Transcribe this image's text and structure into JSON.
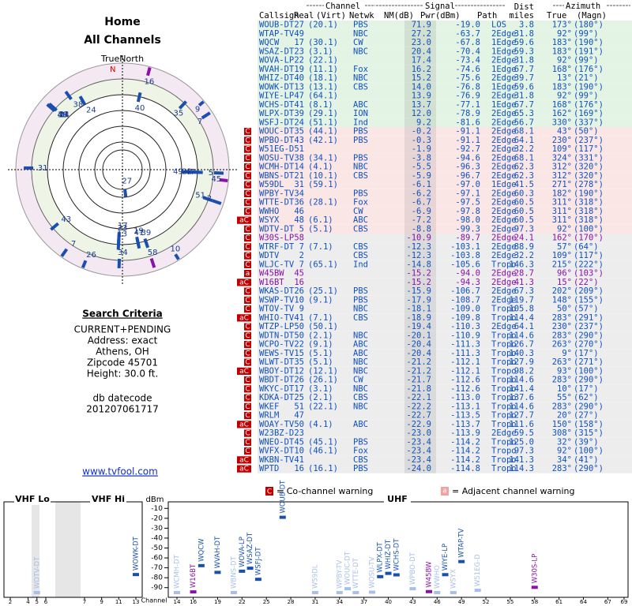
{
  "header": {
    "title": "Home",
    "subtitle": "All Channels"
  },
  "polar": {
    "north_label": "TrueNorth",
    "n": "N"
  },
  "criteria": {
    "heading": "Search Criteria",
    "lines": [
      "CURRENT+PENDING",
      "Address: exact",
      "Athens, OH",
      "Zipcode 45701",
      "Height: 30.0 ft."
    ],
    "datecode_label": "db datecode",
    "datecode": "201207061717",
    "link": "www.tvfool.com"
  },
  "table": {
    "groups": [
      "Channel",
      "Signal",
      "Azimuth"
    ],
    "columns": [
      "Callsign",
      "Real",
      "(Virt)",
      "Netwk",
      "NM(dB)",
      "Pwr(dBm)",
      "Path",
      "Dist",
      "miles",
      "True",
      "(Magn)"
    ],
    "rows": [
      [
        "WOUB-DT",
        "27",
        "(20.1)",
        "PBS",
        "71.9",
        "-19.0",
        "LOS",
        "3.8",
        "173°",
        "(180°)"
      ],
      [
        "WTAP-TV",
        "49",
        null,
        "NBC",
        "27.2",
        "-63.7",
        "2Edge",
        "31.8",
        "92°",
        "(99°)"
      ],
      [
        "WQCW",
        "17",
        "(30.1)",
        "CW",
        "23.0",
        "-67.8",
        "1Edge",
        "59.6",
        "183°",
        "(190°)"
      ],
      [
        "WSAZ-DT",
        "23",
        "(3.1)",
        "NBC",
        "20.4",
        "-70.4",
        "1Edge",
        "59.3",
        "183°",
        "(191°)"
      ],
      [
        "WOVA-LP",
        "22",
        "(22.1)",
        null,
        "17.4",
        "-73.4",
        "2Edge",
        "31.8",
        "92°",
        "(99°)"
      ],
      [
        "WVAH-DT",
        "19",
        "(11.1)",
        "Fox",
        "16.2",
        "-74.6",
        "1Edge",
        "67.7",
        "168°",
        "(176°)"
      ],
      [
        "WHIZ-DT",
        "40",
        "(18.1)",
        "NBC",
        "15.2",
        "-75.6",
        "2Edge",
        "39.7",
        "13°",
        "(21°)"
      ],
      [
        "WOWK-DT",
        "13",
        "(13.1)",
        "CBS",
        "14.0",
        "-76.8",
        "1Edge",
        "59.6",
        "183°",
        "(190°)"
      ],
      [
        "WIYE-LP",
        "47",
        "(64.1)",
        null,
        "13.9",
        "-76.9",
        "2Edge",
        "31.8",
        "92°",
        "(99°)"
      ],
      [
        "WCHS-DT",
        "41",
        "(8.1)",
        "ABC",
        "13.7",
        "-77.1",
        "1Edge",
        "67.7",
        "168°",
        "(176°)"
      ],
      [
        "WLPX-DT",
        "39",
        "(29.1)",
        "ION",
        "12.0",
        "-78.9",
        "2Edge",
        "65.3",
        "162°",
        "(169°)"
      ],
      [
        "WSFJ-DT",
        "24",
        "(51.1)",
        "Ind",
        "9.2",
        "-81.6",
        "2Edge",
        "56.7",
        "330°",
        "(337°)"
      ],
      [
        "WOUC-DT",
        "35",
        "(44.1)",
        "PBS",
        "-0.2",
        "-91.1",
        "2Edge",
        "68.1",
        "43°",
        "(50°)"
      ],
      [
        "WPBO-DT",
        "43",
        "(42.1)",
        "PBS",
        "-0.3",
        "-91.1",
        "2Edge",
        "64.1",
        "230°",
        "(237°)"
      ],
      [
        "W51EG-D",
        "51",
        null,
        null,
        "-1.9",
        "-92.7",
        "2Edge",
        "32.2",
        "109°",
        "(117°)"
      ],
      [
        "WOSU-TV",
        "38",
        "(34.1)",
        "PBS",
        "-3.8",
        "-94.6",
        "2Edge",
        "68.1",
        "324°",
        "(331°)"
      ],
      [
        "WCMH-DT",
        "14",
        "(4.1)",
        "NBC",
        "-5.5",
        "-96.3",
        "2Edge",
        "62.3",
        "312°",
        "(320°)"
      ],
      [
        "WBNS-DT",
        "21",
        "(10.1)",
        "CBS",
        "-5.9",
        "-96.7",
        "2Edge",
        "62.3",
        "312°",
        "(320°)"
      ],
      [
        "W59DL",
        "31",
        "(59.1)",
        null,
        "-6.1",
        "-97.0",
        "1Edge",
        "41.5",
        "271°",
        "(278°)"
      ],
      [
        "WPBY-TV",
        "34",
        null,
        "PBS",
        "-6.2",
        "-97.1",
        "2Edge",
        "60.3",
        "182°",
        "(190°)"
      ],
      [
        "WTTE-DT",
        "36",
        "(28.1)",
        "Fox",
        "-6.7",
        "-97.5",
        "2Edge",
        "60.5",
        "311°",
        "(318°)"
      ],
      [
        "WWHO",
        "46",
        null,
        "CW",
        "-6.9",
        "-97.8",
        "2Edge",
        "60.5",
        "311°",
        "(318°)"
      ],
      [
        "WSYX",
        "48",
        "(6.1)",
        "ABC",
        "-7.2",
        "-98.0",
        "2Edge",
        "60.5",
        "311°",
        "(318°)"
      ],
      [
        "WDTV-DT",
        "5",
        "(5.1)",
        "CBS",
        "-8.8",
        "-99.3",
        "2Edge",
        "97.3",
        "92°",
        "(100°)"
      ],
      [
        "W30S-LP",
        "58",
        null,
        null,
        "-10.9",
        "-89.7",
        "2Edge",
        "24.1",
        "162°",
        "(170°)"
      ],
      [
        "WTRF-DT",
        "7",
        "(7.1)",
        "CBS",
        "-12.3",
        "-103.1",
        "2Edge",
        "88.9",
        "57°",
        "(64°)"
      ],
      [
        "WDTV",
        "2",
        null,
        "CBS",
        "-12.3",
        "-103.8",
        "2Edge",
        "32.2",
        "109°",
        "(117°)"
      ],
      [
        "WLJC-TV",
        "7",
        "(65.1)",
        "Ind",
        "-14.8",
        "-105.6",
        "Tropo",
        "146.3",
        "215°",
        "(222°)"
      ],
      [
        "W45BW",
        "45",
        null,
        null,
        "-15.2",
        "-94.0",
        "2Edge",
        "28.7",
        "96°",
        "(103°)"
      ],
      [
        "W16BT",
        "16",
        null,
        null,
        "-15.2",
        "-94.3",
        "2Edge",
        "41.3",
        "15°",
        "(22°)"
      ],
      [
        "WKAS-DT",
        "26",
        "(25.1)",
        "PBS",
        "-15.9",
        "-106.7",
        "2Edge",
        "67.3",
        "202°",
        "(209°)"
      ],
      [
        "WSWP-TV",
        "10",
        "(9.1)",
        "PBS",
        "-17.9",
        "-108.7",
        "2Edge",
        "119.7",
        "148°",
        "(155°)"
      ],
      [
        "WTOV-TV",
        "9",
        null,
        "NBC",
        "-18.1",
        "-109.0",
        "Tropo",
        "105.8",
        "50°",
        "(57°)"
      ],
      [
        "WHIO-TV",
        "41",
        "(7.1)",
        "CBS",
        "-18.9",
        "-109.8",
        "Tropo",
        "114.4",
        "283°",
        "(291°)"
      ],
      [
        "WTZP-LP",
        "50",
        "(50.1)",
        null,
        "-19.4",
        "-110.3",
        "2Edge",
        "64.1",
        "230°",
        "(237°)"
      ],
      [
        "WDTN-DT",
        "50",
        "(2.1)",
        "NBC",
        "-20.1",
        "-110.9",
        "Tropo",
        "114.6",
        "283°",
        "(290°)"
      ],
      [
        "WCPO-TV",
        "22",
        "(9.1)",
        "ABC",
        "-20.4",
        "-111.3",
        "Tropo",
        "126.7",
        "263°",
        "(270°)"
      ],
      [
        "WEWS-TV",
        "15",
        "(5.1)",
        "ABC",
        "-20.4",
        "-111.3",
        "Tropo",
        "140.3",
        "9°",
        "(17°)"
      ],
      [
        "WLWT-DT",
        "35",
        "(5.1)",
        "NBC",
        "-21.2",
        "-112.1",
        "Tropo",
        "127.9",
        "263°",
        "(271°)"
      ],
      [
        "WBOY-DT",
        "12",
        "(12.1)",
        "NBC",
        "-21.2",
        "-112.1",
        "Tropo",
        "98.2",
        "93°",
        "(100°)"
      ],
      [
        "WBDT-DT",
        "26",
        "(26.1)",
        "CW",
        "-21.7",
        "-112.6",
        "Tropo",
        "114.6",
        "283°",
        "(290°)"
      ],
      [
        "WKYC-DT",
        "17",
        "(3.1)",
        "NBC",
        "-21.8",
        "-112.6",
        "Tropo",
        "141.4",
        "10°",
        "(17°)"
      ],
      [
        "KDKA-DT",
        "25",
        "(2.1)",
        "CBS",
        "-22.1",
        "-113.0",
        "Tropo",
        "137.6",
        "55°",
        "(62°)"
      ],
      [
        "WKEF",
        "51",
        "(22.1)",
        "NBC",
        "-22.2",
        "-113.1",
        "Tropo",
        "114.6",
        "283°",
        "(290°)"
      ],
      [
        "WRLM",
        "47",
        null,
        null,
        "-22.7",
        "-113.5",
        "Tropo",
        "127.7",
        "20°",
        "(27°)"
      ],
      [
        "WOAY-TV",
        "50",
        "(4.1)",
        "ABC",
        "-22.9",
        "-113.7",
        "Tropo",
        "111.6",
        "150°",
        "(158°)"
      ],
      [
        "W23BZ-D",
        "23",
        null,
        null,
        "-23.0",
        "-113.9",
        "2Edge",
        "59.5",
        "308°",
        "(315°)"
      ],
      [
        "WNEO-DT",
        "45",
        "(45.1)",
        "PBS",
        "-23.4",
        "-114.2",
        "Tropo",
        "125.0",
        "32°",
        "(39°)"
      ],
      [
        "WVFX-DT",
        "10",
        "(46.1)",
        "Fox",
        "-23.4",
        "-114.2",
        "Tropo",
        "97.3",
        "92°",
        "(100°)"
      ],
      [
        "WKBN-TV",
        "41",
        null,
        "CBS",
        "-23.4",
        "-114.2",
        "Tropo",
        "141.3",
        "34°",
        "(41°)"
      ],
      [
        "WPTD",
        "16",
        "(16.1)",
        "PBS",
        "-24.0",
        "-114.8",
        "Tropo",
        "114.3",
        "283°",
        "(290°)"
      ]
    ],
    "flags": [
      null,
      null,
      null,
      null,
      null,
      null,
      null,
      null,
      null,
      null,
      null,
      null,
      "C",
      "C",
      "C",
      "C",
      "C",
      "C",
      "C",
      "C",
      "C",
      "C",
      "aC",
      "C",
      "C",
      "C",
      "C",
      "C",
      "a",
      "aC",
      "C",
      "C",
      "C",
      "aC",
      "C",
      "C",
      "C",
      "C",
      "C",
      "aC",
      "C",
      "C",
      "C",
      "C",
      "C",
      "aC",
      "C",
      "C",
      "C",
      "aC",
      "aC"
    ],
    "row_colors": [
      "#1050c0",
      "#1050c0",
      "#1050c0",
      "#1050c0",
      "#1050c0",
      "#1050c0",
      "#1050c0",
      "#1050c0",
      "#1050c0",
      "#1050c0",
      "#1050c0",
      "#1050c0",
      "#1050c0",
      "#1050c0",
      "#1050c0",
      "#1050c0",
      "#1050c0",
      "#1050c0",
      "#1050c0",
      "#1050c0",
      "#1050c0",
      "#1050c0",
      "#1050c0",
      "#1050c0",
      "#8a10a8",
      "#1050c0",
      "#1050c0",
      "#1050c0",
      "#8a10a8",
      "#8a10a8",
      "#1050c0",
      "#1050c0",
      "#1050c0",
      "#1050c0",
      "#1050c0",
      "#1050c0",
      "#1050c0",
      "#1050c0",
      "#1050c0",
      "#1050c0",
      "#1050c0",
      "#1050c0",
      "#1050c0",
      "#1050c0",
      "#1050c0",
      "#1050c0",
      "#1050c0",
      "#1050c0",
      "#1050c0",
      "#1050c0",
      "#1050c0"
    ],
    "band_colors": [
      "#e4f4e4",
      "#e4f4e4",
      "#e4f4e4",
      "#e4f4e4",
      "#e4f4e4",
      "#e4f4e4",
      "#e4f4e4",
      "#e4f4e4",
      "#e4f4e4",
      "#e4f4e4",
      "#e4f4e4",
      "#e4f4e4",
      "#fbe6e6",
      "#fbe6e6",
      "#fbe6e6",
      "#fbe6e6",
      "#fbe6e6",
      "#fbe6e6",
      "#fbe6e6",
      "#fbe6e6",
      "#fbe6e6",
      "#fbe6e6",
      "#fbe6e6",
      "#fbe6e6",
      "#ededed",
      "#ededed",
      "#ededed",
      "#ededed",
      "#ededed",
      "#ededed",
      "#ededed",
      "#ededed",
      "#ededed",
      "#ededed",
      "#ededed",
      "#ededed",
      "#ededed",
      "#ededed",
      "#ededed",
      "#ededed",
      "#ededed",
      "#ededed",
      "#ededed",
      "#ededed",
      "#ededed",
      "#ededed",
      "#ededed",
      "#ededed",
      "#ededed",
      "#ededed",
      "#ededed"
    ]
  },
  "spectrum": {
    "vhf_lo": "VHF Lo",
    "vhf_hi": "VHF Hi",
    "uhf": "UHF",
    "unit": "dBm",
    "x_label": "Channel",
    "ylim": [
      -95,
      -5
    ],
    "yticks": [
      -10,
      -20,
      -30,
      -40,
      -50,
      -60,
      -70,
      -80,
      -90
    ],
    "xticks": [
      2,
      4,
      5,
      6,
      7,
      9,
      11,
      13,
      14,
      16,
      19,
      22,
      25,
      28,
      31,
      34,
      37,
      40,
      43,
      46,
      49,
      52,
      55,
      58,
      61,
      64,
      67,
      69
    ],
    "co_channel_mark": "C",
    "co_channel": "= Co-channel warning",
    "adjacent_mark": "a",
    "adjacent": "= Adjacent channel warning"
  }
}
